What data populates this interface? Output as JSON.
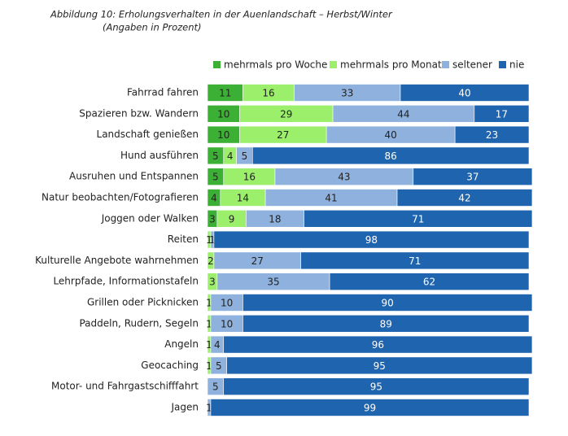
{
  "chart_data": {
    "type": "stacked-bar-horizontal",
    "title": "Abbildung 10: Erholungsverhalten in der Auenlandschaft – Herbst/Winter",
    "subtitle": "(Angaben in Prozent)",
    "categories": [
      "Fahrrad fahren",
      "Spazieren bzw. Wandern",
      "Landschaft genießen",
      "Hund ausführen",
      "Ausruhen und Entspannen",
      "Natur beobachten/Fotografieren",
      "Joggen oder Walken",
      "Reiten",
      "Kulturelle Angebote wahrnehmen",
      "Lehrpfade, Informationstafeln",
      "Grillen oder Picknicken",
      "Paddeln, Rudern, Segeln",
      "Angeln",
      "Geocaching",
      "Motor- und Fahrgastschifffahrt",
      "Jagen"
    ],
    "series": [
      {
        "name": "mehrmals pro Woche",
        "color": "#3cb034",
        "values": [
          11,
          10,
          10,
          5,
          5,
          4,
          3,
          null,
          null,
          null,
          null,
          null,
          null,
          null,
          null,
          null
        ]
      },
      {
        "name": "mehrmals pro Monat",
        "color": "#9bef6b",
        "values": [
          16,
          29,
          27,
          4,
          16,
          14,
          9,
          1,
          2,
          3,
          1,
          1,
          1,
          1,
          null,
          null
        ]
      },
      {
        "name": "seltener",
        "color": "#8eb1dd",
        "values": [
          33,
          44,
          40,
          5,
          43,
          41,
          18,
          1,
          27,
          35,
          10,
          10,
          4,
          5,
          5,
          1
        ]
      },
      {
        "name": "nie",
        "color": "#1f64ae",
        "values": [
          40,
          17,
          23,
          86,
          37,
          42,
          71,
          98,
          71,
          62,
          90,
          89,
          96,
          95,
          95,
          99
        ]
      }
    ],
    "legend": "top"
  }
}
